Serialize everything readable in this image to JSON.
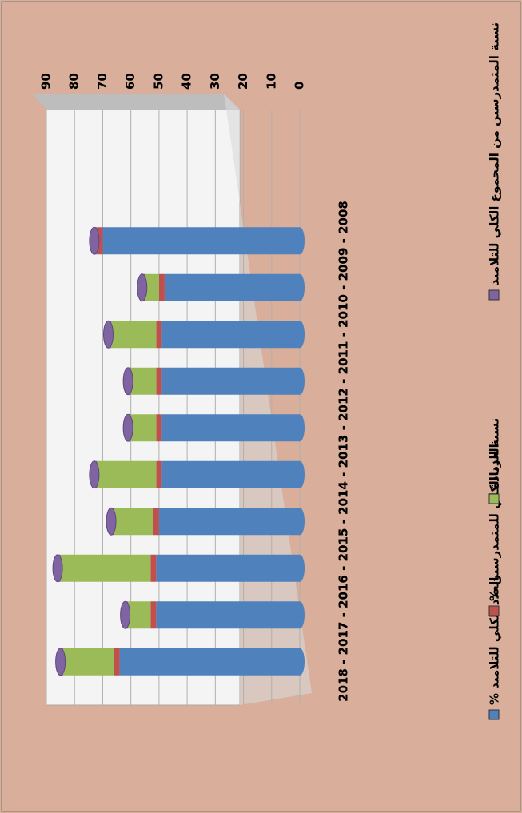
{
  "chart_data": {
    "type": "bar",
    "stacked": true,
    "categories": [
      "2009 - 2008",
      "2010 - 2009",
      "2011 - 2010",
      "2012 - 2011",
      "2013 - 2012",
      "2014 - 2013",
      "2015 - 2014",
      "2016 - 2015",
      "2017 - 2016",
      "2018 - 2017"
    ],
    "series": [
      {
        "name": "% العدد الكلي للتلاميذ",
        "color": "#4f81bd",
        "values": [
          70,
          48,
          49,
          49,
          49,
          49,
          50,
          51,
          51,
          64
        ]
      },
      {
        "name": "% العدد الكلي للمتمدرسين",
        "color": "#c0504d",
        "values": [
          2,
          2,
          2,
          2,
          2,
          2,
          2,
          2,
          2,
          2
        ]
      },
      {
        "name": "نسبة الزيادة",
        "color": "#9bbb59",
        "values": [
          0,
          5,
          16,
          9,
          9,
          21,
          14,
          32,
          8,
          18
        ]
      },
      {
        "name": "نسبة المتمدرسين من المجموع الكلي للتلاميذ",
        "color": "#8064a2",
        "values": [
          1,
          1,
          1,
          1,
          1,
          1,
          1,
          1,
          1,
          1
        ]
      }
    ],
    "ylim": [
      0,
      90
    ],
    "yticks": [
      0,
      10,
      20,
      30,
      40,
      50,
      60,
      70,
      80,
      90
    ],
    "grid": true,
    "legend": "bottom"
  }
}
